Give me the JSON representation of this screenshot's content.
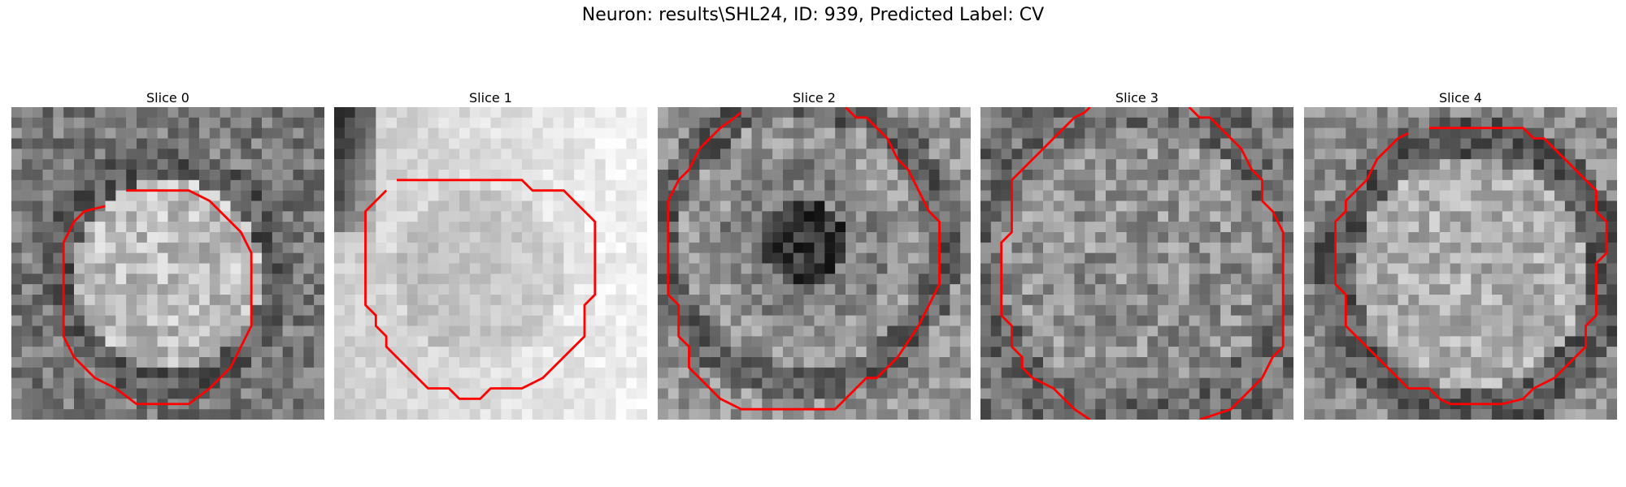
{
  "figure": {
    "title": "Neuron: results\\SHL24, ID: 939, Predicted Label: CV"
  },
  "panels": [
    {
      "title": "Slice 0"
    },
    {
      "title": "Slice 1"
    },
    {
      "title": "Slice 2"
    },
    {
      "title": "Slice 3"
    },
    {
      "title": "Slice 4"
    }
  ],
  "colors": {
    "contour": "#ff0000",
    "colormap": "gray"
  }
}
